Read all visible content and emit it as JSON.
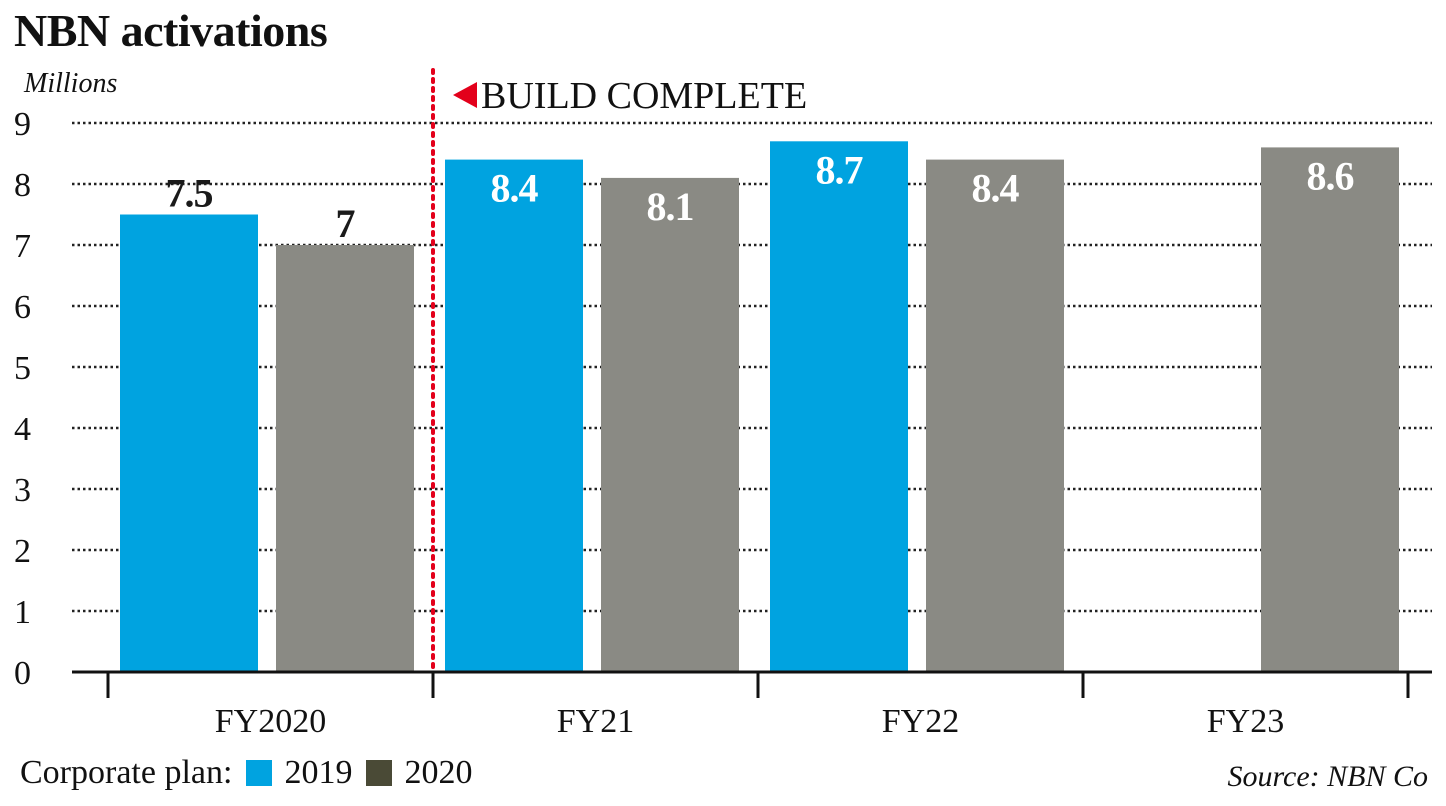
{
  "chart_data": {
    "type": "bar",
    "title": "NBN activations",
    "ylabel": "Millions",
    "xlabel": "",
    "ylim": [
      0,
      9
    ],
    "yticks": [
      0,
      1,
      2,
      3,
      4,
      5,
      6,
      7,
      8,
      9
    ],
    "grid": true,
    "categories": [
      "FY2020",
      "FY21",
      "FY22",
      "FY23"
    ],
    "series": [
      {
        "name": "2019",
        "color": "#00a3e0",
        "values": [
          7.5,
          8.4,
          8.7,
          null
        ],
        "labels": [
          "7.5",
          "8.4",
          "8.7",
          null
        ]
      },
      {
        "name": "2020",
        "color": "#8a8a84",
        "values": [
          7.0,
          8.1,
          8.4,
          8.6
        ],
        "labels": [
          "7",
          "8.1",
          "8.4",
          "8.6"
        ]
      }
    ],
    "annotation": {
      "text": "BUILD COMPLETE",
      "color": "#e3001b"
    },
    "legend": {
      "title": "Corporate plan:",
      "items": [
        {
          "label": "2019",
          "color": "#00a3e0"
        },
        {
          "label": "2020",
          "color": "#4a4a36"
        }
      ]
    },
    "source": "Source: NBN Co"
  }
}
